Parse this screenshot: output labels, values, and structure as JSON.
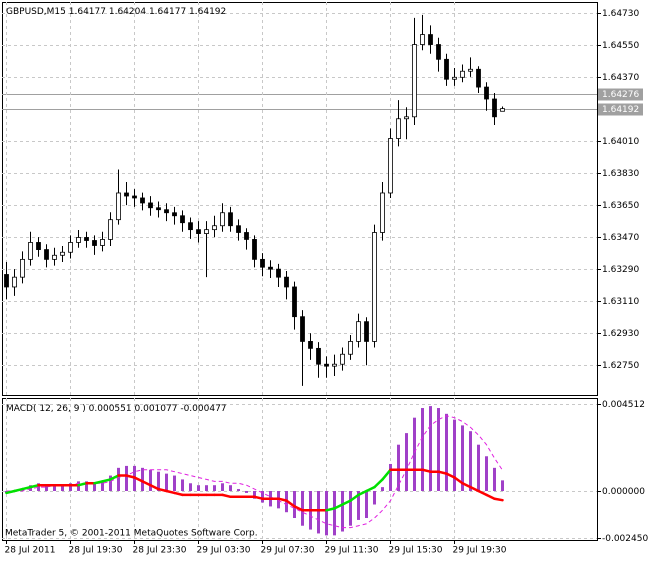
{
  "chart_data": [
    {
      "type": "candlestick",
      "title": "GBPUSD,M15",
      "ylim": [
        1.62583,
        1.64791
      ],
      "yticks": [
        {
          "value": 1.6473,
          "label": "1.64730"
        },
        {
          "value": 1.6455,
          "label": "1.64550"
        },
        {
          "value": 1.6437,
          "label": "1.64370"
        },
        {
          "value": 1.6401,
          "label": "1.64010"
        },
        {
          "value": 1.6383,
          "label": "1.63830"
        },
        {
          "value": 1.6365,
          "label": "1.63650"
        },
        {
          "value": 1.6347,
          "label": "1.63470"
        },
        {
          "value": 1.6329,
          "label": "1.63290"
        },
        {
          "value": 1.6311,
          "label": "1.63110"
        },
        {
          "value": 1.6293,
          "label": "1.62930"
        },
        {
          "value": 1.6275,
          "label": "1.62750"
        }
      ],
      "ask": 1.64276,
      "bid": 1.64192,
      "grid": true,
      "color": "#000000",
      "up_fill": "#ffffff",
      "open": [
        1.6326,
        1.6319,
        1.63245,
        1.63345,
        1.6344,
        1.634,
        1.63345,
        1.63368,
        1.63385,
        1.6344,
        1.63468,
        1.63451,
        1.63423,
        1.63457,
        1.63568,
        1.63718,
        1.63701,
        1.6369,
        1.63662,
        1.63635,
        1.63624,
        1.63607,
        1.6359,
        1.63551,
        1.63512,
        1.6349,
        1.63512,
        1.63534,
        1.63607,
        1.63534,
        1.63496,
        1.63457,
        1.63345,
        1.63301,
        1.6329,
        1.63245,
        1.6319,
        1.63023,
        1.62884,
        1.62845,
        1.62756,
        1.62745,
        1.62756,
        1.62812,
        1.62884,
        1.62995,
        1.62884,
        1.63496,
        1.63718,
        1.64024,
        1.64135,
        1.64146,
        1.64552,
        1.64608,
        1.64552,
        1.64469,
        1.64357,
        1.64368,
        1.64402,
        1.64413,
        1.64313,
        1.64246,
        1.64177
      ],
      "high": [
        1.6333,
        1.6329,
        1.6339,
        1.635,
        1.6347,
        1.6343,
        1.6341,
        1.6342,
        1.6348,
        1.6351,
        1.635,
        1.6348,
        1.635,
        1.6361,
        1.6385,
        1.6378,
        1.6374,
        1.6372,
        1.637,
        1.6367,
        1.6366,
        1.6364,
        1.6362,
        1.6358,
        1.6356,
        1.6356,
        1.6359,
        1.6366,
        1.6364,
        1.6357,
        1.6352,
        1.6348,
        1.6338,
        1.6334,
        1.6332,
        1.6328,
        1.6322,
        1.6306,
        1.6293,
        1.6288,
        1.628,
        1.6281,
        1.6285,
        1.6292,
        1.6304,
        1.6302,
        1.6354,
        1.6378,
        1.6408,
        1.6424,
        1.642,
        1.64702,
        1.64719,
        1.6466,
        1.6459,
        1.645,
        1.6442,
        1.6444,
        1.6448,
        1.6443,
        1.6434,
        1.6428,
        1.64204
      ],
      "low": [
        1.6312,
        1.6314,
        1.6321,
        1.6331,
        1.6336,
        1.633,
        1.6331,
        1.6333,
        1.6335,
        1.6341,
        1.6341,
        1.6337,
        1.6339,
        1.6342,
        1.6354,
        1.6365,
        1.6364,
        1.6362,
        1.6359,
        1.6358,
        1.6356,
        1.6354,
        1.635,
        1.6346,
        1.6344,
        1.63245,
        1.6347,
        1.635,
        1.635,
        1.6345,
        1.634,
        1.633,
        1.6325,
        1.6324,
        1.6319,
        1.6312,
        1.6295,
        1.62634,
        1.6278,
        1.6268,
        1.6268,
        1.6269,
        1.6272,
        1.6278,
        1.6285,
        1.6275,
        1.6285,
        1.6345,
        1.6369,
        1.6398,
        1.6402,
        1.641,
        1.6452,
        1.645,
        1.644,
        1.6432,
        1.6432,
        1.6434,
        1.6437,
        1.6428,
        1.6418,
        1.641,
        1.64177
      ],
      "close": [
        1.6319,
        1.63245,
        1.63345,
        1.6344,
        1.634,
        1.63345,
        1.63368,
        1.63385,
        1.6344,
        1.63468,
        1.63451,
        1.63423,
        1.63457,
        1.63568,
        1.63718,
        1.63701,
        1.6369,
        1.63662,
        1.63635,
        1.63624,
        1.63607,
        1.6359,
        1.63551,
        1.63512,
        1.6349,
        1.63512,
        1.63534,
        1.63607,
        1.63534,
        1.63496,
        1.63457,
        1.63345,
        1.63301,
        1.6329,
        1.63245,
        1.6319,
        1.63023,
        1.62884,
        1.62845,
        1.62756,
        1.62745,
        1.62756,
        1.62812,
        1.62884,
        1.62995,
        1.62884,
        1.63496,
        1.63718,
        1.64024,
        1.64135,
        1.64146,
        1.64552,
        1.64608,
        1.64552,
        1.64469,
        1.64357,
        1.64368,
        1.64402,
        1.64413,
        1.64313,
        1.64246,
        1.64146,
        1.64192
      ]
    },
    {
      "type": "macd",
      "title": "MACD( 12, 26, 9 )",
      "ylim": [
        -0.00254,
        0.00482
      ],
      "yticks": [
        0.004512,
        {
          "value": 0,
          "label": "0.000000"
        },
        {
          "value": -0.00245,
          "label": "-0.002450"
        }
      ],
      "grid": true,
      "categories": [
        "28 Jul 2011",
        null,
        null,
        null,
        null,
        null,
        null,
        null,
        "28 Jul 19:30",
        null,
        null,
        null,
        null,
        null,
        null,
        null,
        "28 Jul 23:30",
        null,
        null,
        null,
        null,
        null,
        null,
        null,
        "29 Jul 03:30",
        null,
        null,
        null,
        null,
        null,
        null,
        null,
        "29 Jul 07:30",
        null,
        null,
        null,
        null,
        null,
        null,
        null,
        "29 Jul 11:30",
        null,
        null,
        null,
        null,
        null,
        null,
        null,
        "29 Jul 15:30",
        null,
        null,
        null,
        null,
        null,
        null,
        null,
        "29 Jul 19:30",
        null,
        null,
        null,
        null,
        null,
        null
      ],
      "series": [
        {
          "style": "histogram",
          "color": "#a040c8",
          "values": [
            -0.0001,
            -5e-05,
            0.0001,
            0.0003,
            0.0004,
            0.0003,
            0.0003,
            0.0003,
            0.0004,
            0.0005,
            0.0005,
            0.0004,
            0.0005,
            0.0008,
            0.0012,
            0.0013,
            0.0013,
            0.0012,
            0.0011,
            0.001,
            0.0009,
            0.0008,
            0.0006,
            0.0004,
            0.0003,
            0.0003,
            0.0003,
            0.0004,
            0.0003,
            0.0001,
            -0.0001,
            -0.0004,
            -0.0006,
            -0.0008,
            -0.0009,
            -0.0011,
            -0.0014,
            -0.0018,
            -0.002,
            -0.0022,
            -0.0023,
            -0.0023,
            -0.0021,
            -0.0018,
            -0.0015,
            -0.0014,
            -0.0007,
            0.0002,
            0.0014,
            0.0024,
            0.003,
            0.0038,
            0.0043,
            0.0044,
            0.0043,
            0.004,
            0.0037,
            0.0034,
            0.0031,
            0.0024,
            0.0018,
            0.0012,
            0.000551
          ]
        },
        {
          "style": "dashed",
          "color": "#e020e0",
          "values": [
            0,
            0,
            0,
            0.0001,
            0.0002,
            0.0002,
            0.0003,
            0.0003,
            0.0003,
            0.0004,
            0.0004,
            0.0004,
            0.0004,
            0.0005,
            0.0007,
            0.0008,
            0.001,
            0.0011,
            0.0011,
            0.0011,
            0.0011,
            0.001,
            0.0009,
            0.0008,
            0.0007,
            0.0006,
            0.0005,
            0.0005,
            0.0004,
            0.0004,
            0.0003,
            0.0001,
            -0.0001,
            -0.0003,
            -0.0005,
            -0.0007,
            -0.0009,
            -0.0011,
            -0.0013,
            -0.0015,
            -0.0017,
            -0.0018,
            -0.0019,
            -0.0019,
            -0.0018,
            -0.0017,
            -0.0014,
            -0.001,
            -0.0005,
            0.0003,
            0.0011,
            0.002,
            0.0028,
            0.0034,
            0.0037,
            0.0039,
            0.0038,
            0.0036,
            0.0033,
            0.0029,
            0.0024,
            0.0017,
            0.001077
          ]
        },
        {
          "style": "colored",
          "color": "#ff0000",
          "rising_color": "#00e000",
          "values": [
            -0.0001,
            0,
            0.0001,
            0.0002,
            0.0003,
            0.0003,
            0.0003,
            0.0003,
            0.0003,
            0.0003,
            0.0004,
            0.0004,
            0.0005,
            0.0006,
            0.0008,
            0.0008,
            0.0007,
            0.0005,
            0.0003,
            0.0001,
            0,
            -0.0001,
            -0.0002,
            -0.0002,
            -0.0002,
            -0.0002,
            -0.0002,
            -0.0002,
            -0.0003,
            -0.0003,
            -0.0003,
            -0.0003,
            -0.0004,
            -0.0004,
            -0.0004,
            -0.0005,
            -0.0008,
            -0.001,
            -0.001,
            -0.001,
            -0.001,
            -0.0009,
            -0.0007,
            -0.0005,
            -0.0002,
            0,
            0.0002,
            0.0006,
            0.0011,
            0.0011,
            0.0011,
            0.0011,
            0.0011,
            0.001,
            0.001,
            0.0009,
            0.0007,
            0.0004,
            0.0002,
            0,
            -0.0002,
            -0.0004,
            -0.000477
          ]
        }
      ]
    }
  ],
  "footer": "MetaTrader 5, © 2001-2011 MetaQuotes Software Corp."
}
